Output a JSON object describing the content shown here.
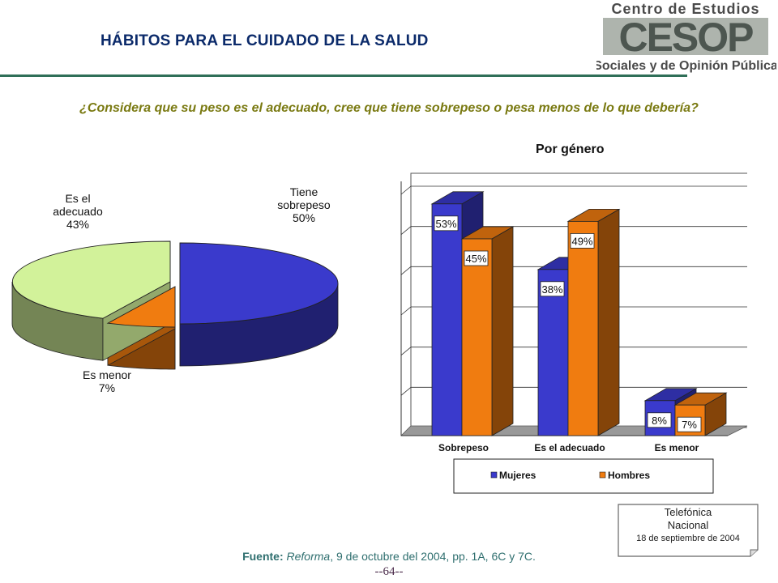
{
  "header": {
    "title": "HÁBITOS PARA EL CUIDADO DE LA SALUD",
    "logo_line1": "Centro de Estudios",
    "logo_acronym": "CESOP",
    "logo_line2": "Sociales y de Opinión Pública"
  },
  "question": "¿Considera que su peso es el adecuado, cree que tiene sobrepeso o pesa menos de lo que debería?",
  "chart_data": [
    {
      "type": "pie",
      "title": "",
      "slices": [
        {
          "label": [
            "Tiene",
            "sobrepeso"
          ],
          "value": 50,
          "value_label": "50%",
          "color": "#3a3acc"
        },
        {
          "label": [
            "Es menor"
          ],
          "value": 7,
          "value_label": "7%",
          "color": "#f07c10"
        },
        {
          "label": [
            "Es el",
            "adecuado"
          ],
          "value": 43,
          "value_label": "43%",
          "color": "#d2f29a"
        }
      ]
    },
    {
      "type": "bar",
      "title": "Por género",
      "categories": [
        "Sobrepeso",
        "Es el adecuado",
        "Es menor"
      ],
      "series": [
        {
          "name": "Mujeres",
          "values": [
            53,
            38,
            8
          ],
          "labels": [
            "53%",
            "38%",
            "8%"
          ],
          "color": "#3a3acc"
        },
        {
          "name": "Hombres",
          "values": [
            45,
            49,
            7
          ],
          "labels": [
            "45%",
            "49%",
            "7%"
          ],
          "color": "#f07c10"
        }
      ],
      "ylim": [
        0,
        60
      ],
      "grid": true,
      "legend": "bottom"
    }
  ],
  "note": {
    "line1": "Telefónica",
    "line2": "Nacional",
    "line3": "18 de septiembre de 2004"
  },
  "source": {
    "label": "Fuente:",
    "publication": "Reforma",
    "detail": ", 9 de octubre del 2004, pp. 1A,  6C y 7C."
  },
  "page_number": "--64--"
}
